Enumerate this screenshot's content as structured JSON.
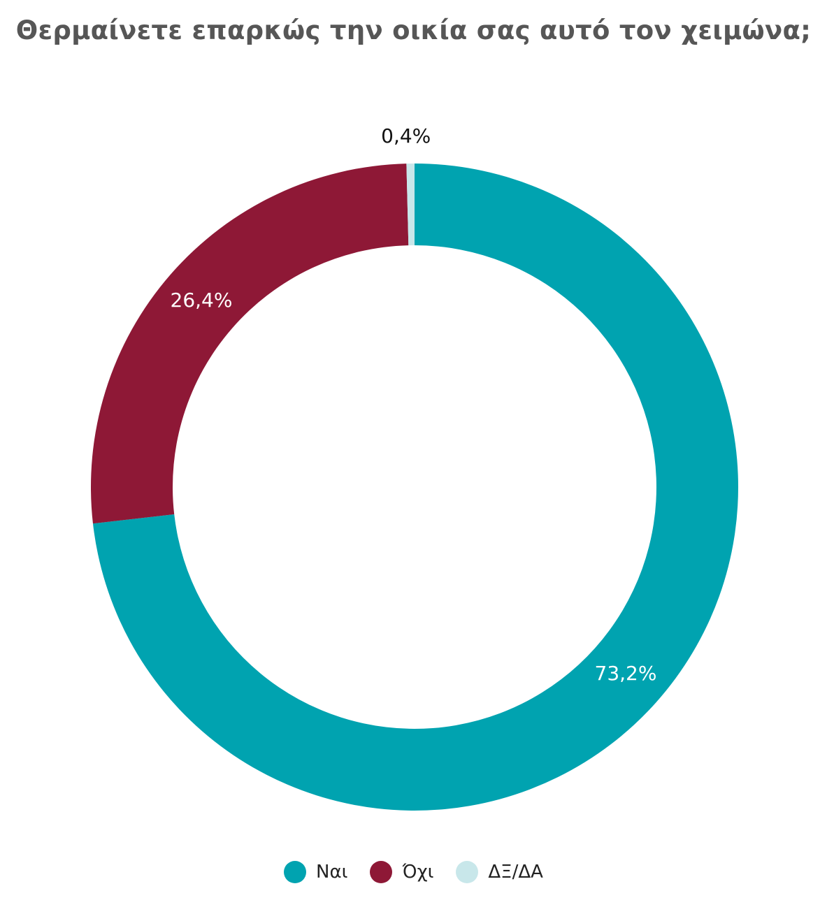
{
  "title": "Θερμαίνετε επαρκώς την οικία σας αυτό τον χειμώνα;",
  "chart_data": {
    "type": "pie",
    "variant": "donut",
    "categories": [
      "Ναι",
      "Όχι",
      "ΔΞ/ΔΑ"
    ],
    "values": [
      73.2,
      26.4,
      0.4
    ],
    "value_labels": [
      "73,2%",
      "26,4%",
      "0,4%"
    ],
    "colors": [
      "#00A3B0",
      "#8E1836",
      "#C8E7EA"
    ],
    "label_colors": [
      "#ffffff",
      "#ffffff",
      "#111111"
    ],
    "legend_position": "bottom"
  }
}
